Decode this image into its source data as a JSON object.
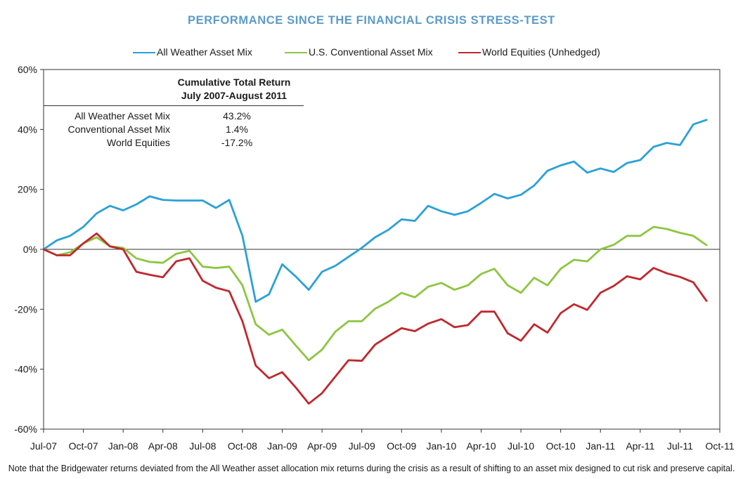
{
  "title": "PERFORMANCE SINCE THE FINANCIAL CRISIS STRESS-TEST",
  "note": "Note that the Bridgewater returns deviated from the All Weather asset allocation mix returns during the crisis as a result of shifting to an asset mix designed to cut risk and preserve capital.",
  "inset": {
    "heading_line1": "Cumulative Total Return",
    "heading_line2": "July 2007-August 2011",
    "rows": [
      {
        "label": "All Weather Asset Mix",
        "value": "43.2%"
      },
      {
        "label": "Conventional Asset Mix",
        "value": "1.4%"
      },
      {
        "label": "World Equities",
        "value": "-17.2%"
      }
    ]
  },
  "chart_data": {
    "type": "line",
    "title": "PERFORMANCE SINCE THE FINANCIAL CRISIS STRESS-TEST",
    "xlabel": "",
    "ylabel": "",
    "ylim": [
      -60,
      60
    ],
    "yticks": [
      60,
      40,
      20,
      0,
      -20,
      -40,
      -60
    ],
    "ytick_labels": [
      "60%",
      "40%",
      "20%",
      "0%",
      "-20%",
      "-40%",
      "-60%"
    ],
    "x_range": [
      0,
      51
    ],
    "xticks": [
      0,
      3,
      6,
      9,
      12,
      15,
      18,
      21,
      24,
      27,
      30,
      33,
      36,
      39,
      42,
      45,
      48,
      51
    ],
    "xtick_labels": [
      "Jul-07",
      "Oct-07",
      "Jan-08",
      "Apr-08",
      "Jul-08",
      "Oct-08",
      "Jan-09",
      "Apr-09",
      "Jul-09",
      "Oct-09",
      "Jan-10",
      "Apr-10",
      "Jul-10",
      "Oct-10",
      "Jan-11",
      "Apr-11",
      "Jul-11",
      "Oct-11"
    ],
    "legend_position": "top",
    "series": [
      {
        "name": "All Weather Asset Mix",
        "color": "#2aa1d8",
        "values": [
          0,
          3,
          4.5,
          7.5,
          12,
          14.5,
          13,
          15,
          17.7,
          16.5,
          16.3,
          16.3,
          16.3,
          13.8,
          16.5,
          4.5,
          -17.5,
          -15,
          -5,
          -9,
          -13.5,
          -7.5,
          -5.5,
          -2.5,
          0.5,
          4,
          6.5,
          10,
          9.5,
          14.5,
          12.7,
          11.5,
          12.7,
          15.5,
          18.5,
          17,
          18.2,
          21.3,
          26.2,
          28,
          29.3,
          25.6,
          27,
          25.8,
          28.8,
          29.8,
          34.2,
          35.5,
          34.8,
          41.7,
          43.2
        ]
      },
      {
        "name": "U.S. Conventional Asset Mix",
        "color": "#8cc63f",
        "values": [
          0,
          -2,
          -1,
          2,
          4,
          1,
          0.5,
          -3,
          -4.2,
          -4.5,
          -1.5,
          -0.5,
          -5.8,
          -6.2,
          -5.8,
          -12,
          -25,
          -28.5,
          -26.8,
          -32,
          -37,
          -33.5,
          -27.5,
          -24,
          -24,
          -19.8,
          -17.5,
          -14.5,
          -16,
          -12.5,
          -11.2,
          -13.5,
          -12,
          -8.2,
          -6.5,
          -12,
          -14.5,
          -9.5,
          -12,
          -6.5,
          -3.5,
          -4,
          0,
          1.5,
          4.5,
          4.5,
          7.5,
          6.8,
          5.5,
          4.5,
          1.4
        ]
      },
      {
        "name": "World Equities (Unhedged)",
        "color": "#c1272d",
        "values": [
          0,
          -2,
          -2,
          2,
          5.3,
          1,
          0,
          -7.5,
          -8.5,
          -9.3,
          -4,
          -3,
          -10.5,
          -12.8,
          -14,
          -24,
          -38.8,
          -43,
          -41,
          -46,
          -51.5,
          -48,
          -42.5,
          -37,
          -37.2,
          -31.8,
          -29,
          -26.3,
          -27.3,
          -24.8,
          -23.3,
          -26,
          -25.3,
          -20.8,
          -20.8,
          -28,
          -30.5,
          -25,
          -27.8,
          -21.3,
          -18.3,
          -20.2,
          -14.5,
          -12.2,
          -9,
          -10,
          -6.2,
          -8,
          -9.2,
          -11,
          -17.2
        ]
      }
    ]
  }
}
